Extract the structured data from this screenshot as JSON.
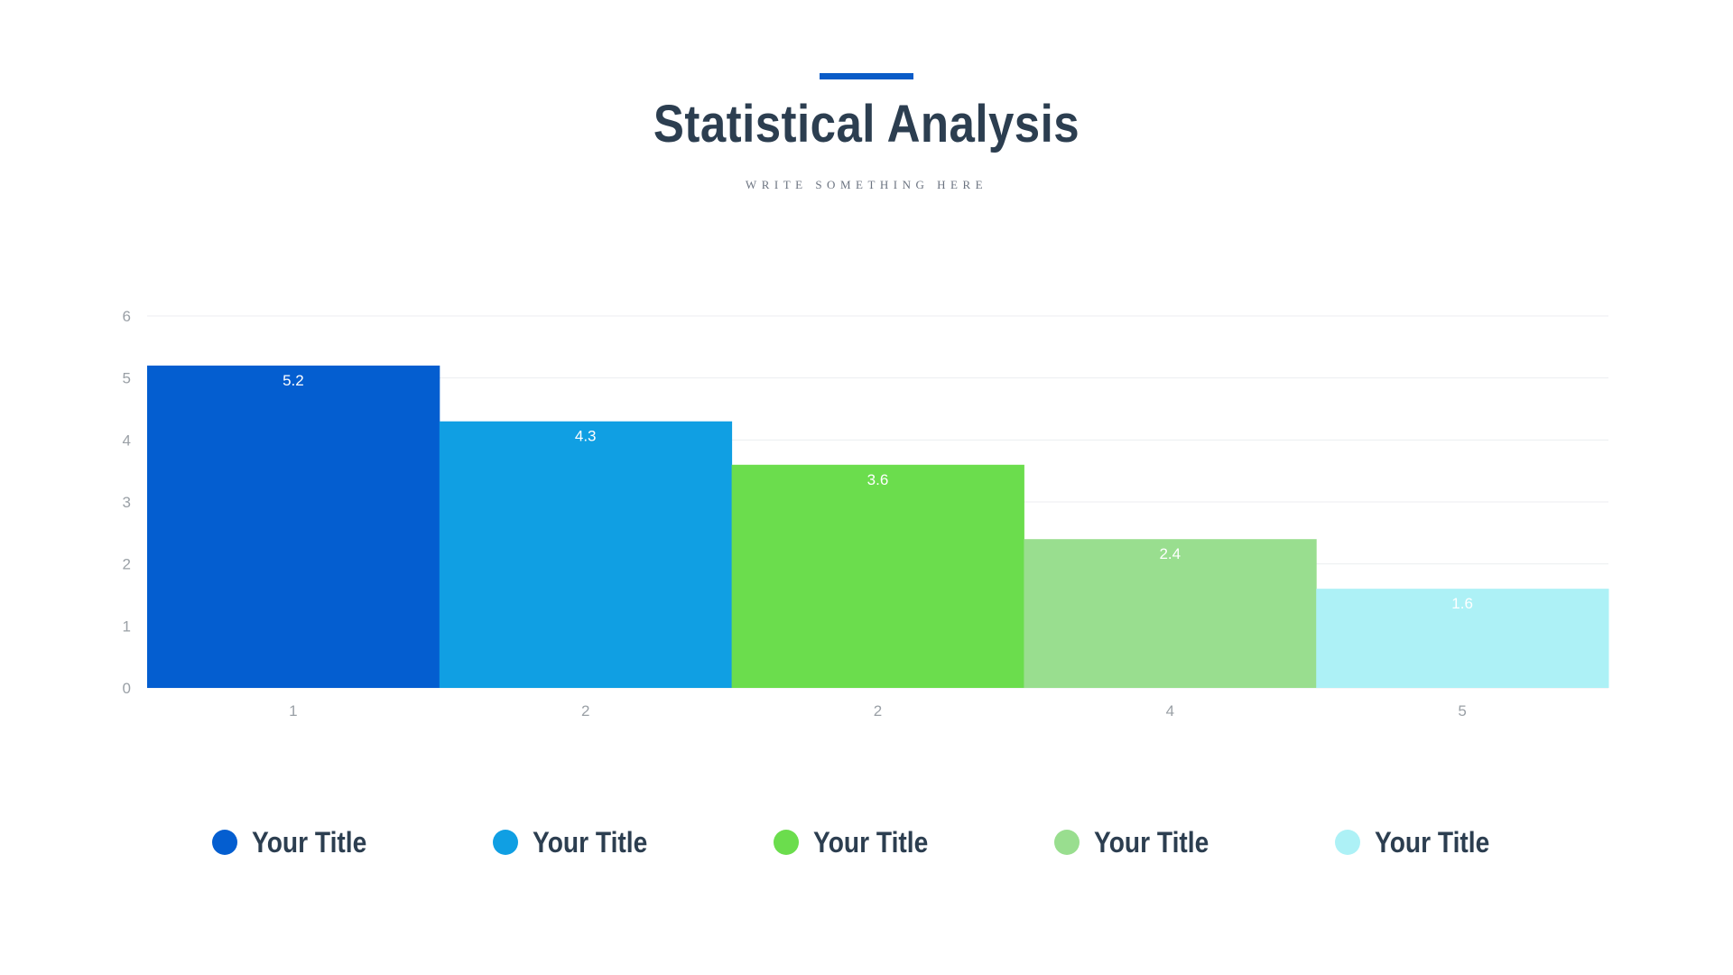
{
  "slide": {
    "title": "Statistical Analysis",
    "subtitle": "WRITE SOMETHING HERE",
    "accent_color": "#0a5cc8"
  },
  "chart_data": {
    "type": "bar",
    "categories": [
      "1",
      "2",
      "2",
      "4",
      "5"
    ],
    "values": [
      5.2,
      4.3,
      3.6,
      2.4,
      1.6
    ],
    "data_labels": [
      "5.2",
      "4.3",
      "3.6",
      "2.4",
      "1.6"
    ],
    "colors": [
      "#045ed0",
      "#109fe3",
      "#6bdd4d",
      "#99de8f",
      "#adf1f6"
    ],
    "ylim": [
      0,
      6
    ],
    "yticks": [
      0,
      1,
      2,
      3,
      4,
      5,
      6
    ],
    "grid": true,
    "legend_position": "bottom",
    "title": "",
    "xlabel": "",
    "ylabel": ""
  },
  "legend": {
    "items": [
      {
        "label": "Your Title",
        "color": "#045ed0"
      },
      {
        "label": "Your Title",
        "color": "#109fe3"
      },
      {
        "label": "Your Title",
        "color": "#6bdd4d"
      },
      {
        "label": "Your Title",
        "color": "#99de8f"
      },
      {
        "label": "Your Title",
        "color": "#adf1f6"
      }
    ]
  }
}
